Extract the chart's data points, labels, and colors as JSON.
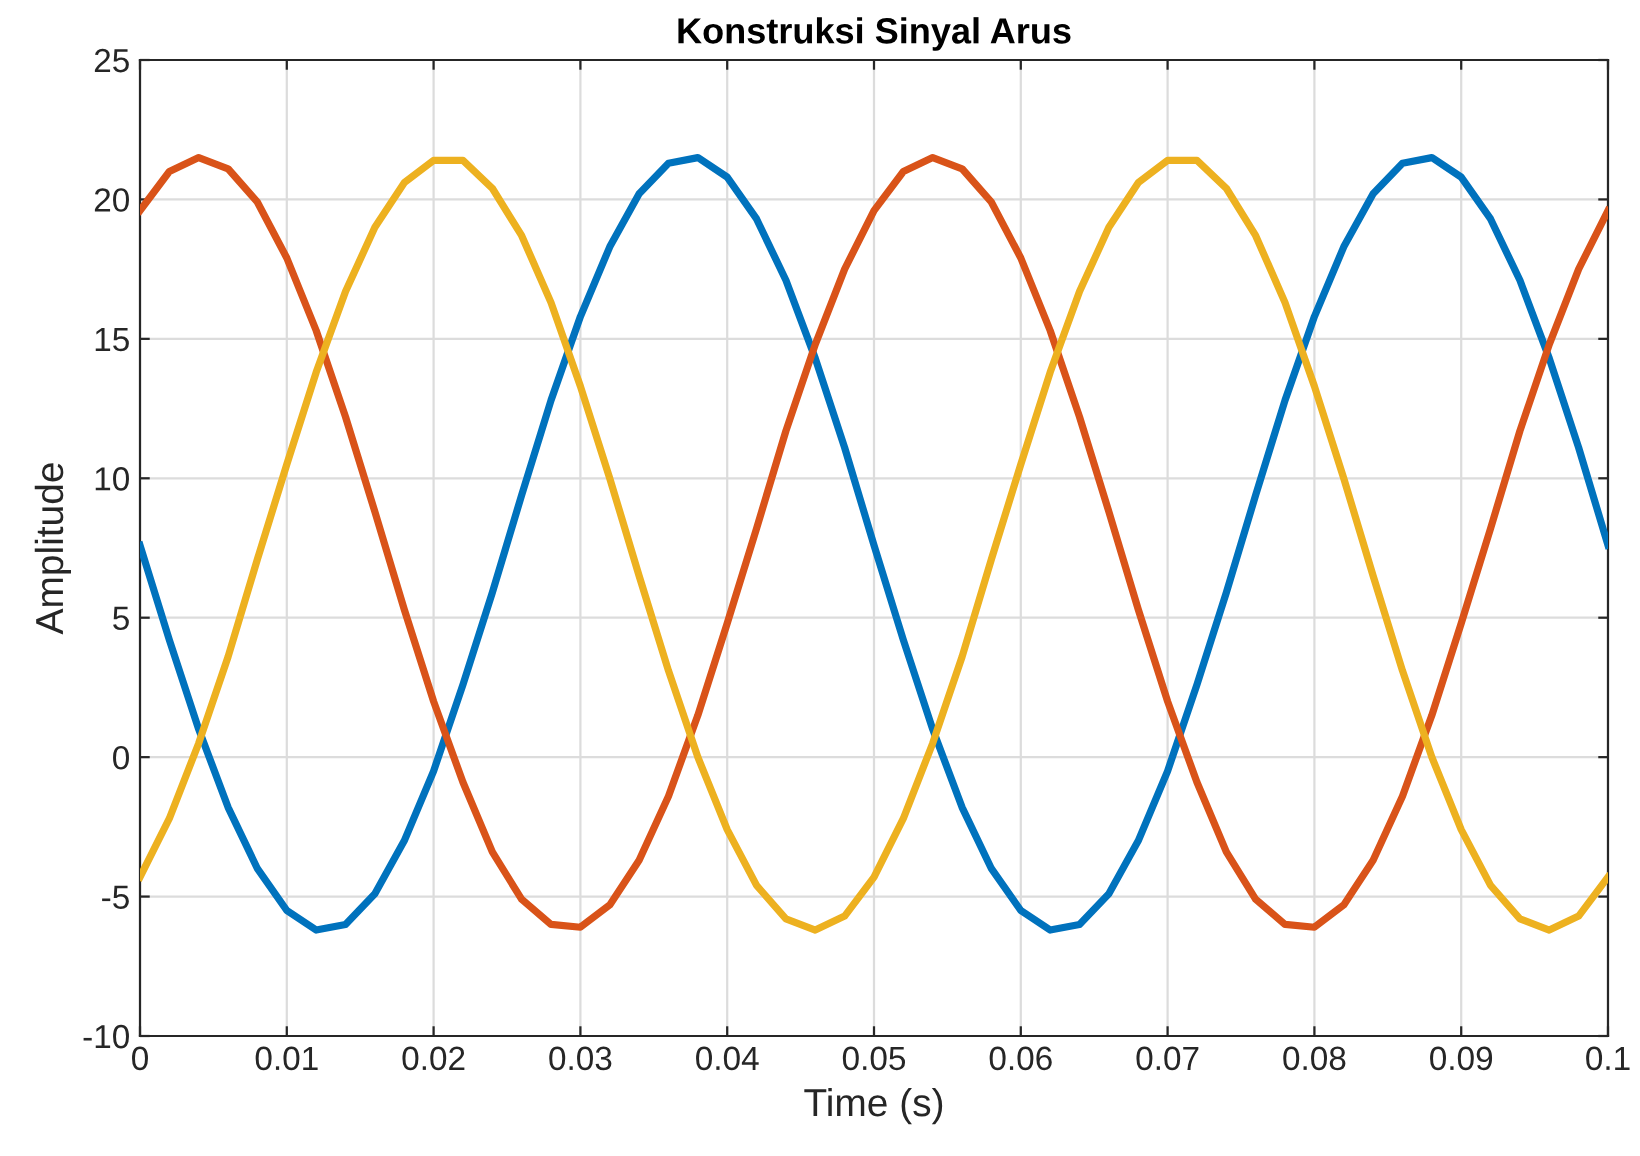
{
  "chart_data": {
    "type": "line",
    "title": "Konstruksi Sinyal Arus",
    "xlabel": "Time (s)",
    "ylabel": "Amplitude",
    "x": [
      0,
      0.002,
      0.004,
      0.006,
      0.008,
      0.01,
      0.012,
      0.014,
      0.016,
      0.018,
      0.02,
      0.022,
      0.024,
      0.026,
      0.028,
      0.03,
      0.032,
      0.034,
      0.036,
      0.038,
      0.04,
      0.042,
      0.044,
      0.046,
      0.048,
      0.05,
      0.052,
      0.054,
      0.056,
      0.058,
      0.06,
      0.062,
      0.064,
      0.066,
      0.068,
      0.07,
      0.072,
      0.074,
      0.076,
      0.078,
      0.08,
      0.082,
      0.084,
      0.086,
      0.088,
      0.09,
      0.092,
      0.094,
      0.096,
      0.098,
      0.1
    ],
    "series": [
      {
        "color": "#0072bd",
        "values": [
          7.6,
          4.2,
          1.0,
          -1.8,
          -4.0,
          -5.5,
          -6.2,
          -6.0,
          -4.9,
          -3.0,
          -0.5,
          2.6,
          5.9,
          9.4,
          12.8,
          15.8,
          18.3,
          20.2,
          21.3,
          21.5,
          20.8,
          19.3,
          17.1,
          14.3,
          11.1,
          7.6,
          4.2,
          1.0,
          -1.8,
          -4.0,
          -5.5,
          -6.2,
          -6.0,
          -4.9,
          -3.0,
          -0.5,
          2.6,
          5.9,
          9.4,
          12.8,
          15.8,
          18.3,
          20.2,
          21.3,
          21.5,
          20.8,
          19.3,
          17.1,
          14.3,
          11.1,
          7.6
        ]
      },
      {
        "color": "#d95319",
        "values": [
          19.6,
          21.0,
          21.5,
          21.1,
          19.9,
          17.9,
          15.3,
          12.2,
          8.8,
          5.3,
          2.0,
          -0.9,
          -3.4,
          -5.1,
          -6.0,
          -6.1,
          -5.3,
          -3.7,
          -1.4,
          1.5,
          4.8,
          8.2,
          11.7,
          14.8,
          17.5,
          19.6,
          21.0,
          21.5,
          21.1,
          19.9,
          17.9,
          15.3,
          12.2,
          8.8,
          5.3,
          2.0,
          -0.9,
          -3.4,
          -5.1,
          -6.0,
          -6.1,
          -5.3,
          -3.7,
          -1.4,
          1.5,
          4.8,
          8.2,
          11.7,
          14.8,
          17.5,
          19.6
        ]
      },
      {
        "color": "#edb120",
        "values": [
          -4.3,
          -2.2,
          0.5,
          3.6,
          7.1,
          10.5,
          13.8,
          16.7,
          19.0,
          20.6,
          21.4,
          21.4,
          20.4,
          18.7,
          16.3,
          13.3,
          10.0,
          6.5,
          3.1,
          0.0,
          -2.6,
          -4.6,
          -5.8,
          -6.2,
          -5.7,
          -4.3,
          -2.2,
          0.5,
          3.6,
          7.1,
          10.5,
          13.8,
          16.7,
          19.0,
          20.6,
          21.4,
          21.4,
          20.4,
          18.7,
          16.3,
          13.3,
          10.0,
          6.5,
          3.1,
          0.0,
          -2.6,
          -4.6,
          -5.8,
          -6.2,
          -5.7,
          -4.3
        ]
      }
    ],
    "xlim": [
      0,
      0.1
    ],
    "xticks": [
      0,
      0.01,
      0.02,
      0.03,
      0.04,
      0.05,
      0.06,
      0.07,
      0.08,
      0.09,
      0.1
    ],
    "ylim": [
      -10,
      25
    ],
    "yticks": [
      -10,
      -5,
      0,
      5,
      10,
      15,
      20,
      25
    ],
    "grid": true
  }
}
